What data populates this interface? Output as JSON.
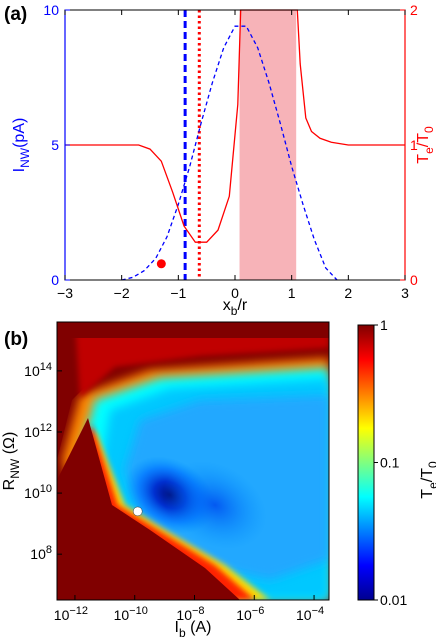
{
  "panel_a": {
    "label": "(a)",
    "chart_data": {
      "type": "line",
      "xlabel_main": "x",
      "xlabel_sub": "b",
      "xlabel_rest": "/r",
      "ylabel_left_main": "I",
      "ylabel_left_sub": "NW",
      "ylabel_left_rest": "(pA)",
      "ylabel_right_main": "T",
      "ylabel_right_sub1": "e",
      "ylabel_right_mid": "/T",
      "ylabel_right_sub2": "0",
      "xlim": [
        -3,
        3
      ],
      "ylim_left": [
        0,
        10
      ],
      "ylim_right": [
        0,
        2
      ],
      "x_ticks": [
        -3,
        -2,
        -1,
        0,
        1,
        2,
        3
      ],
      "x_tick_labels": [
        "−3",
        "−2",
        "−1",
        "0",
        "1",
        "2",
        "3"
      ],
      "y_left_ticks": [
        0,
        5,
        10
      ],
      "y_left_tick_labels": [
        "0",
        "5",
        "10"
      ],
      "y_right_ticks": [
        0,
        1,
        2
      ],
      "y_right_tick_labels": [
        "0",
        "1",
        "2"
      ],
      "colors": {
        "left_axis": "#0000ff",
        "right_axis": "#ff0000",
        "shade": "#f7b3b8"
      },
      "shaded_region": [
        0.08,
        1.08
      ],
      "vlines": [
        {
          "x": -0.88,
          "style": "dashed",
          "color": "#0000ff"
        },
        {
          "x": -0.63,
          "style": "dotted",
          "color": "#ff0000"
        }
      ],
      "marker": {
        "x": -1.3,
        "y_right": 0.12,
        "color": "#ff0000"
      },
      "series": [
        {
          "axis": "left",
          "style": "dashed",
          "color": "#0000ff",
          "x": [
            -2.0,
            -1.8,
            -1.6,
            -1.4,
            -1.2,
            -1.0,
            -0.8,
            -0.6,
            -0.4,
            -0.2,
            0.0,
            0.2,
            0.4,
            0.6,
            0.8,
            1.0,
            1.2,
            1.4,
            1.6,
            1.8
          ],
          "y": [
            0.0,
            0.1,
            0.35,
            0.8,
            1.6,
            2.8,
            4.2,
            5.8,
            7.3,
            8.6,
            9.4,
            9.4,
            8.6,
            7.3,
            5.8,
            4.2,
            2.8,
            1.5,
            0.45,
            0.0
          ]
        },
        {
          "axis": "right",
          "style": "solid",
          "color": "#ff0000",
          "x": [
            -3.0,
            -1.7,
            -1.5,
            -1.3,
            -1.1,
            -0.9,
            -0.7,
            -0.5,
            -0.3,
            -0.1,
            0.05,
            0.1,
            1.1,
            1.15,
            1.25,
            1.35,
            1.5,
            1.7,
            2.0,
            3.0
          ],
          "y": [
            1.0,
            1.0,
            0.97,
            0.88,
            0.65,
            0.4,
            0.28,
            0.28,
            0.37,
            0.62,
            1.3,
            2.0,
            2.0,
            1.6,
            1.2,
            1.1,
            1.05,
            1.02,
            1.0,
            1.0
          ]
        }
      ]
    }
  },
  "panel_b": {
    "label": "(b)",
    "chart_data": {
      "type": "heatmap",
      "xlabel_main": "I",
      "xlabel_sub": "b",
      "xlabel_rest": " (A)",
      "ylabel_main": "R",
      "ylabel_sub": "NW",
      "ylabel_rest": " (Ω)",
      "x_scale": "log",
      "y_scale": "log",
      "xlim_log10": [
        -12.6,
        -3.5
      ],
      "ylim_log10": [
        6.5,
        15.6
      ],
      "x_tick_exponents": [
        -12,
        -10,
        -8,
        -6,
        -4
      ],
      "y_tick_exponents": [
        8,
        10,
        12,
        14
      ],
      "tick_base": "10",
      "colorbar": {
        "label_main": "T",
        "label_sub1": "e",
        "label_mid": "/T",
        "label_sub2": "0",
        "scale": "log",
        "range": [
          0.01,
          1
        ],
        "ticks": [
          0.01,
          0.1,
          1
        ],
        "tick_labels": [
          "0.01",
          "0.1",
          "1"
        ],
        "colormap": "jet"
      },
      "marker": {
        "log10_x": -9.9,
        "log10_y": 9.4,
        "color": "#ffffff"
      }
    }
  }
}
